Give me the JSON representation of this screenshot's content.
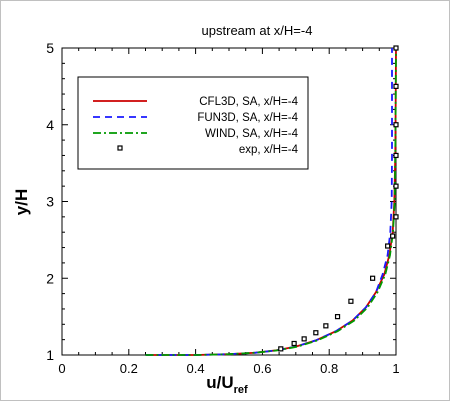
{
  "chart_data": {
    "type": "line",
    "title": "upstream at x/H=-4",
    "ylabel": "y/H",
    "xlabel": {
      "main": "u/U",
      "subscript": "ref"
    },
    "xlim": [
      0,
      1
    ],
    "ylim": [
      1,
      5
    ],
    "xticks": [
      0,
      0.2,
      0.4,
      0.6,
      0.8,
      1
    ],
    "xtick_labels": [
      "0",
      "0.2",
      "0.4",
      "0.6",
      "0.8",
      "1"
    ],
    "yticks": [
      1,
      2,
      3,
      4,
      5
    ],
    "ytick_labels": [
      "1",
      "2",
      "3",
      "4",
      "5"
    ],
    "legend_position": "upper-left",
    "series": [
      {
        "name": "CFL3D, SA, x/H=-4",
        "style": "solid",
        "color": "#cc0000",
        "x": [
          0.25,
          0.4,
          0.5,
          0.58,
          0.64,
          0.7,
          0.76,
          0.82,
          0.87,
          0.91,
          0.94,
          0.965,
          0.98,
          0.99,
          0.995,
          0.998,
          0.999,
          1.0
        ],
        "y": [
          1.0,
          1.0,
          1.01,
          1.03,
          1.06,
          1.11,
          1.19,
          1.31,
          1.45,
          1.62,
          1.82,
          2.05,
          2.3,
          2.6,
          3.0,
          3.6,
          4.3,
          5.0
        ]
      },
      {
        "name": "FUN3D, SA, x/H=-4",
        "style": "dashed",
        "color": "#1a1aff",
        "x": [
          0.25,
          0.4,
          0.5,
          0.58,
          0.64,
          0.7,
          0.76,
          0.82,
          0.87,
          0.91,
          0.94,
          0.96,
          0.975,
          0.983,
          0.987,
          0.988,
          0.988,
          0.988
        ],
        "y": [
          1.0,
          1.0,
          1.01,
          1.03,
          1.06,
          1.11,
          1.19,
          1.31,
          1.45,
          1.62,
          1.82,
          2.05,
          2.3,
          2.6,
          3.0,
          3.6,
          4.3,
          5.0
        ]
      },
      {
        "name": "WIND, SA, x/H=-4",
        "style": "dashdot",
        "color": "#009900",
        "x": [
          0.25,
          0.4,
          0.5,
          0.58,
          0.645,
          0.705,
          0.765,
          0.825,
          0.875,
          0.915,
          0.945,
          0.968,
          0.982,
          0.991,
          0.996,
          0.998,
          0.999,
          1.0
        ],
        "y": [
          1.0,
          1.0,
          1.01,
          1.03,
          1.06,
          1.11,
          1.19,
          1.31,
          1.45,
          1.62,
          1.82,
          2.05,
          2.3,
          2.6,
          3.0,
          3.6,
          4.3,
          5.0
        ]
      },
      {
        "name": "exp, x/H=-4",
        "style": "markers",
        "color": "#000000",
        "x": [
          0.655,
          0.695,
          0.725,
          0.76,
          0.79,
          0.825,
          0.865,
          0.93,
          0.975,
          0.99,
          1.0,
          1.0,
          1.0,
          1.0,
          1.0,
          1.0
        ],
        "y": [
          1.08,
          1.15,
          1.21,
          1.29,
          1.38,
          1.5,
          1.7,
          2.0,
          2.42,
          2.55,
          2.8,
          3.2,
          3.6,
          4.0,
          4.5,
          5.0
        ]
      }
    ]
  }
}
